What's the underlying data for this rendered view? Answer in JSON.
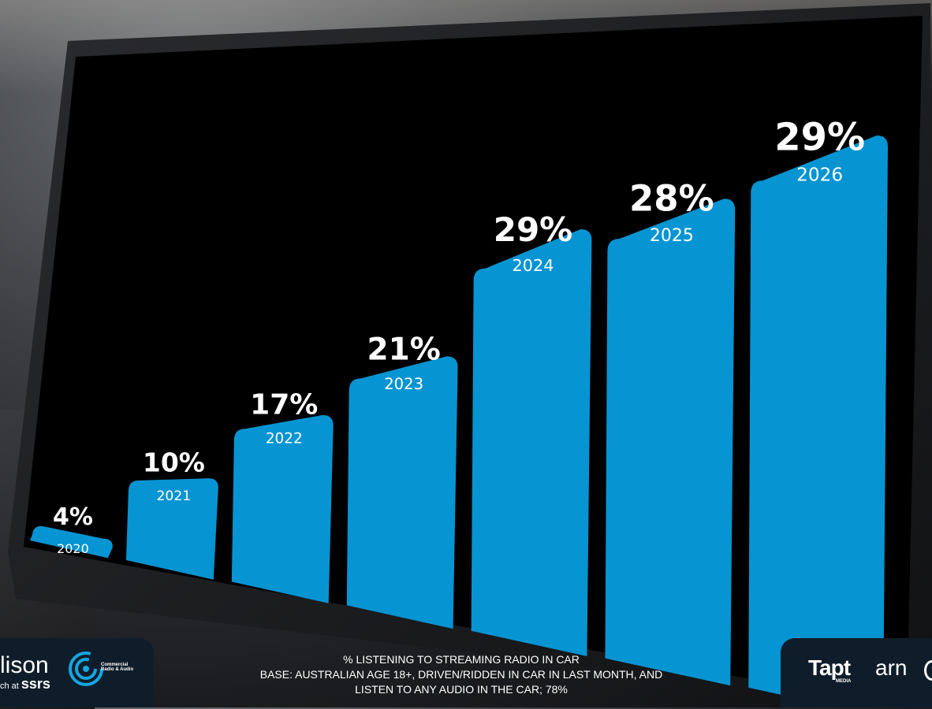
{
  "chart_data": {
    "type": "bar",
    "categories": [
      "2020",
      "2021",
      "2022",
      "2023",
      "2024",
      "2025",
      "2026"
    ],
    "values": [
      4,
      10,
      17,
      21,
      29,
      28,
      29
    ],
    "value_labels": [
      "4%",
      "10%",
      "17%",
      "21%",
      "29%",
      "28%",
      "29%"
    ],
    "bar_color": "#0794d2",
    "background_color": "#000000",
    "ylim": [
      0,
      29
    ]
  },
  "caption": {
    "line1": "% LISTENING TO STREAMING RADIO IN CAR",
    "line2": "BASE: AUSTRALIAN AGE 18+, DRIVEN/RIDDEN IN CAR IN LAST MONTH, AND",
    "line3": "LISTEN TO ANY AUDIO IN THE CAR; 78%"
  },
  "logos": {
    "edison_main": "lison",
    "edison_sub_a": "ch at ",
    "edison_sub_b": "ssrs",
    "cra_text": "Commercial Radio & Audio",
    "tapt_main": "Tapt",
    "tapt_sub": "MEDIA",
    "arn": "arn"
  },
  "icons": {
    "cra": "cra-ring-icon"
  }
}
